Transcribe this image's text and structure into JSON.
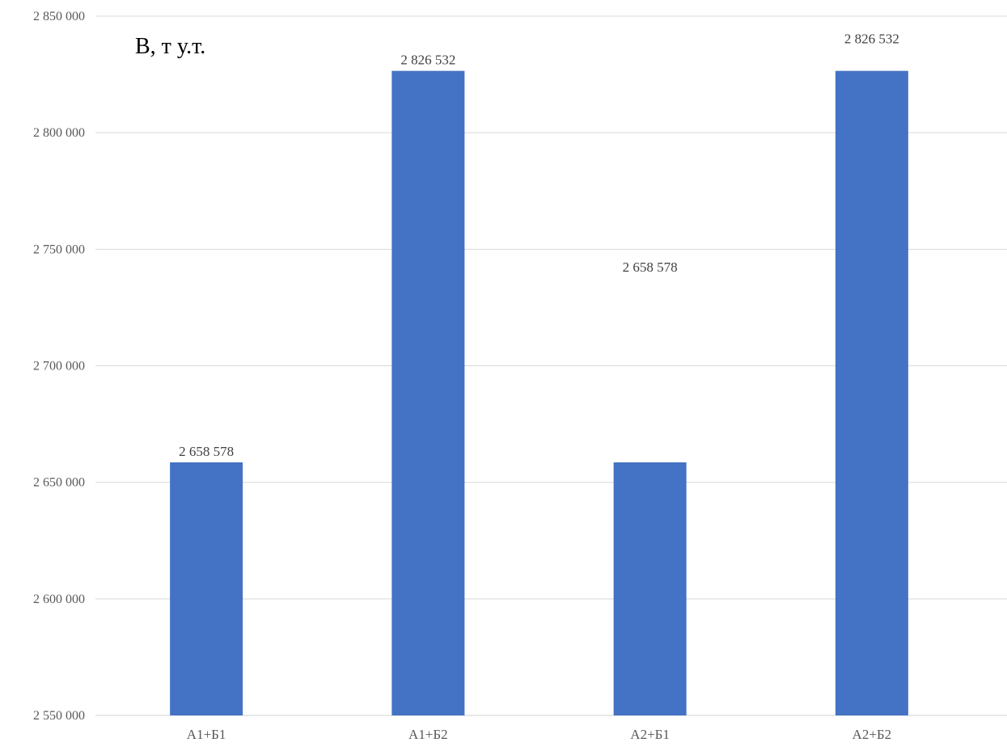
{
  "chart_data": {
    "type": "bar",
    "title": "",
    "ylabel": "В, т у.т.",
    "xlabel": "",
    "categories": [
      "А1+Б1",
      "А1+Б2",
      "А2+Б1",
      "А2+Б2"
    ],
    "values": [
      2658578,
      2826532,
      2658578,
      2826532
    ],
    "data_labels": [
      "2 658 578",
      "2 826 532",
      "2 658 578",
      "2 826 532"
    ],
    "ylim": [
      2550000,
      2850000
    ],
    "yticks": [
      2550000,
      2600000,
      2650000,
      2700000,
      2750000,
      2800000,
      2850000
    ],
    "ytick_labels": [
      "2 550 000",
      "2 600 000",
      "2 650 000",
      "2 700 000",
      "2 750 000",
      "2 800 000",
      "2 850 000"
    ],
    "grid": true,
    "legend": "none",
    "bar_color": "#4472C4"
  }
}
